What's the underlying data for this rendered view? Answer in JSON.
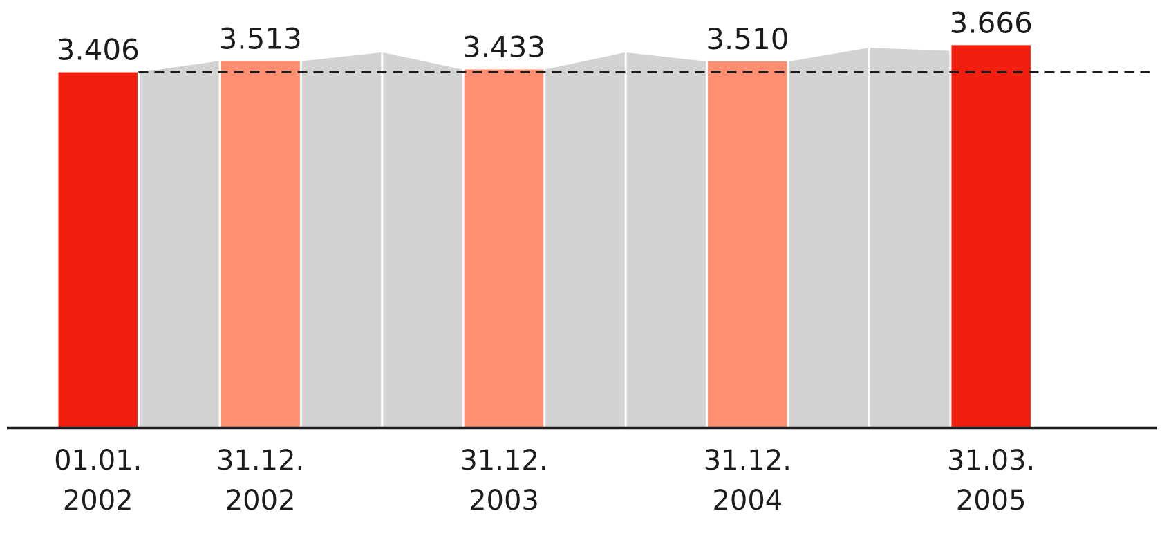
{
  "chart_data": {
    "type": "bar",
    "title": "",
    "xlabel": "",
    "ylabel": "",
    "ylim": [
      0,
      3666
    ],
    "reference_line": {
      "value": 3406,
      "style": "dashed"
    },
    "colors": {
      "endpoint_bar": "#f21f0f",
      "year_end_bar": "#ff8f70",
      "interim_bar": "#d3d3d3",
      "reference_line": "#1c1c1c",
      "axis": "#1c1c1c"
    },
    "labeled_bars": [
      {
        "x_line1": "01.01.",
        "x_line2": "2002",
        "value": 3406,
        "value_label": "3.406",
        "kind": "endpoint"
      },
      {
        "x_line1": "31.12.",
        "x_line2": "2002",
        "value": 3513,
        "value_label": "3.513",
        "kind": "year_end"
      },
      {
        "x_line1": "31.12.",
        "x_line2": "2003",
        "value": 3433,
        "value_label": "3.433",
        "kind": "year_end"
      },
      {
        "x_line1": "31.12.",
        "x_line2": "2004",
        "value": 3510,
        "value_label": "3.510",
        "kind": "year_end"
      },
      {
        "x_line1": "31.03.",
        "x_line2": "2005",
        "value": 3666,
        "value_label": "3.666",
        "kind": "endpoint"
      }
    ],
    "interim_series": [
      {
        "start": 3406,
        "end": 3513
      },
      {
        "start": 3513,
        "end": 3595
      },
      {
        "start": 3595,
        "end": 3433
      },
      {
        "start": 3433,
        "end": 3595
      },
      {
        "start": 3595,
        "end": 3510
      },
      {
        "start": 3510,
        "end": 3640
      },
      {
        "start": 3640,
        "end": 3612
      }
    ]
  }
}
